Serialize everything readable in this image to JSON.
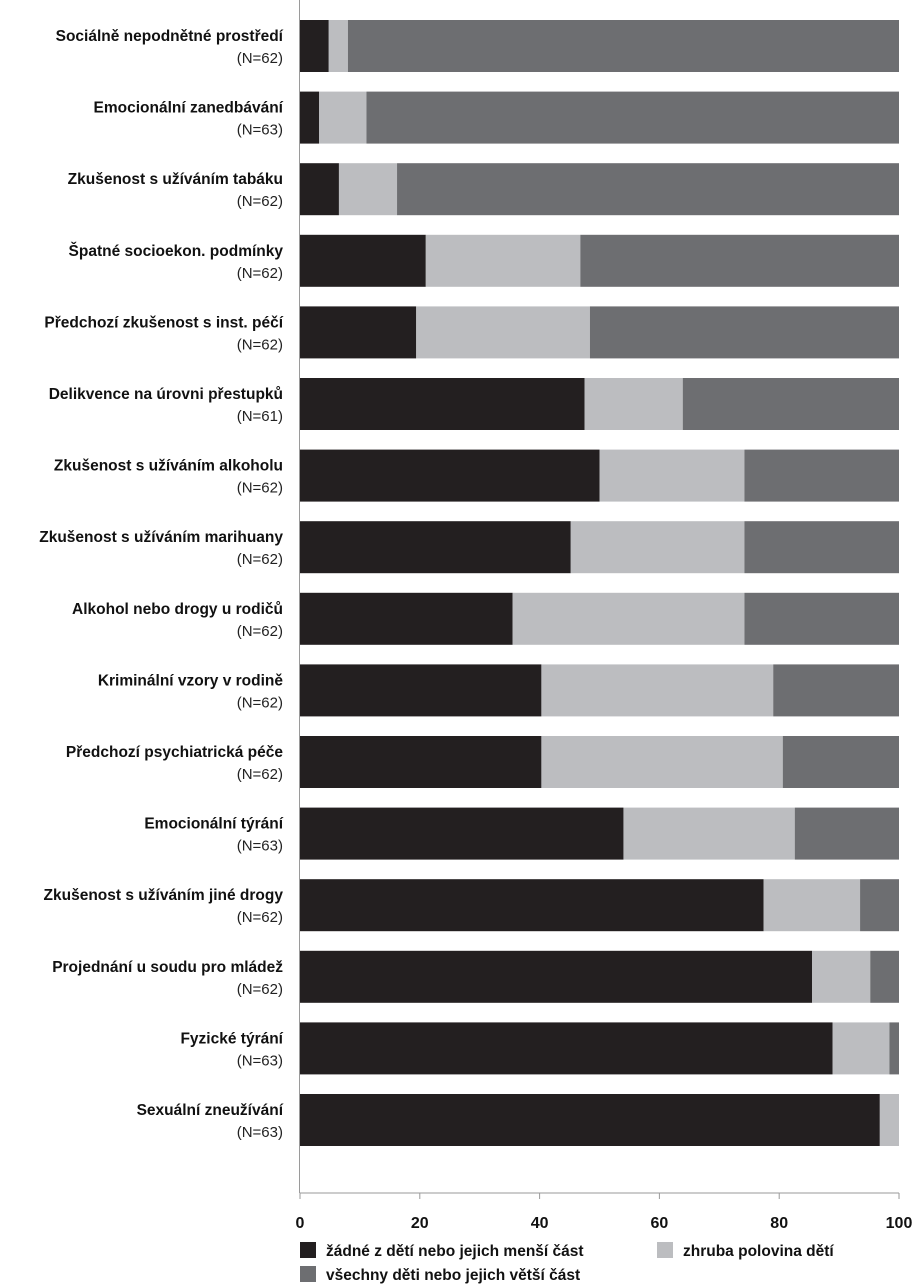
{
  "chart_data": {
    "type": "bar",
    "orientation": "horizontal",
    "stacked": true,
    "title": "",
    "xlabel": "",
    "ylabel": "",
    "xlim": [
      0,
      100
    ],
    "x_ticks": [
      "0",
      "20",
      "40",
      "60",
      "80",
      "100"
    ],
    "grid": false,
    "legend_position": "bottom",
    "categories": [
      {
        "label": "Sociálně nepodnětné prostředí",
        "n": "(N=62)"
      },
      {
        "label": "Emocionální zanedbávání",
        "n": "(N=63)"
      },
      {
        "label": "Zkušenost s užíváním tabáku",
        "n": "(N=62)"
      },
      {
        "label": "Špatné socioekon. podmínky",
        "n": "(N=62)"
      },
      {
        "label": "Předchozí zkušenost s inst. péčí",
        "n": "(N=62)"
      },
      {
        "label": "Delikvence na úrovni přestupků",
        "n": "(N=61)"
      },
      {
        "label": "Zkušenost s užíváním alkoholu",
        "n": "(N=62)"
      },
      {
        "label": "Zkušenost s užíváním marihuany",
        "n": "(N=62)"
      },
      {
        "label": "Alkohol nebo drogy u rodičů",
        "n": "(N=62)"
      },
      {
        "label": "Kriminální vzory v rodině",
        "n": "(N=62)"
      },
      {
        "label": "Předchozí psychiatrická péče",
        "n": "(N=62)"
      },
      {
        "label": "Emocionální týrání",
        "n": "(N=63)"
      },
      {
        "label": "Zkušenost s užíváním jiné drogy",
        "n": "(N=62)"
      },
      {
        "label": "Projednání u soudu pro mládež",
        "n": "(N=62)"
      },
      {
        "label": "Fyzické týrání",
        "n": "(N=63)"
      },
      {
        "label": "Sexuální zneužívání",
        "n": "(N=63)"
      }
    ],
    "series": [
      {
        "name": "žádné z dětí nebo jejich menší část",
        "color": "#231f20",
        "values": [
          4.8,
          3.2,
          6.5,
          21.0,
          19.4,
          47.5,
          50.0,
          45.2,
          35.5,
          40.3,
          40.3,
          54.0,
          77.4,
          85.5,
          88.9,
          96.8
        ]
      },
      {
        "name": "zhruba polovina dětí",
        "color": "#bcbdc0",
        "values": [
          3.2,
          7.9,
          9.7,
          25.8,
          29.0,
          16.4,
          24.2,
          29.0,
          38.7,
          38.7,
          40.3,
          28.6,
          16.1,
          9.7,
          9.5,
          3.2
        ]
      },
      {
        "name": "všechny děti nebo jejich větší část",
        "color": "#6d6e71",
        "values": [
          92.0,
          88.9,
          83.8,
          53.2,
          51.6,
          36.1,
          25.8,
          25.8,
          25.8,
          21.0,
          19.4,
          17.4,
          6.5,
          4.8,
          1.6,
          0.0
        ]
      }
    ]
  }
}
